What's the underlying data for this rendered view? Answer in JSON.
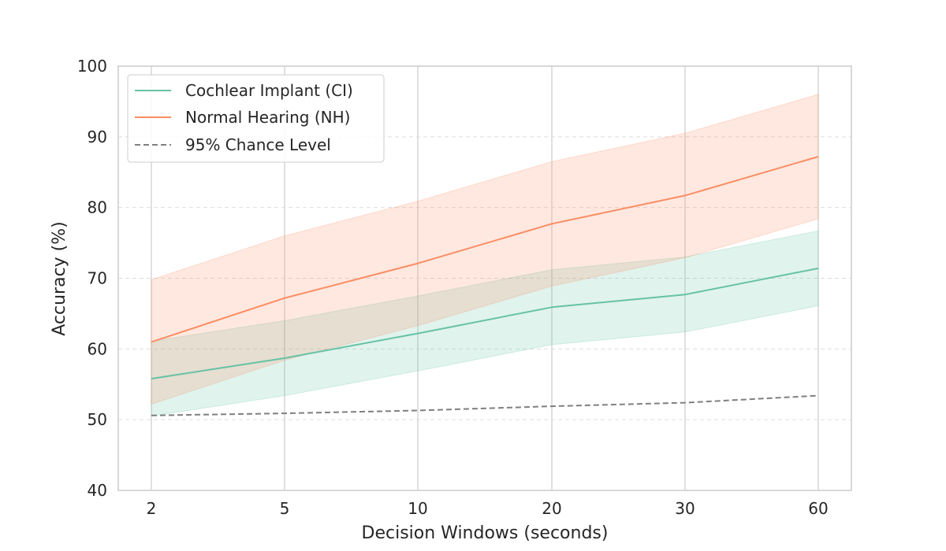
{
  "chart_data": {
    "type": "line",
    "title": "",
    "xlabel": "Decision Windows (seconds)",
    "ylabel": "Accuracy (%)",
    "categories": [
      "2",
      "5",
      "10",
      "20",
      "30",
      "60"
    ],
    "ylim": [
      40,
      100
    ],
    "yticks": [
      "40",
      "50",
      "60",
      "70",
      "80",
      "90",
      "100"
    ],
    "grid": {
      "x": "solid",
      "y": "dashed"
    },
    "legend_position": "top-left",
    "series": [
      {
        "name": "Cochlear Implant (CI)",
        "color": "#66c2a5",
        "style": "solid",
        "values": [
          55.8,
          58.7,
          62.2,
          65.9,
          67.7,
          71.4
        ],
        "lower": [
          50.5,
          53.4,
          56.9,
          60.6,
          62.4,
          66.1
        ],
        "upper": [
          61.1,
          64.0,
          67.5,
          71.2,
          73.0,
          76.7
        ]
      },
      {
        "name": "Normal Hearing (NH)",
        "color": "#fc8d62",
        "style": "solid",
        "values": [
          61.0,
          67.2,
          72.1,
          77.7,
          81.7,
          87.2
        ],
        "lower": [
          52.2,
          58.4,
          63.3,
          68.9,
          72.9,
          78.4
        ],
        "upper": [
          69.8,
          76.0,
          80.9,
          86.5,
          90.5,
          96.0
        ]
      },
      {
        "name": "95% Chance Level",
        "color": "#7f7f7f",
        "style": "dashed",
        "values": [
          50.6,
          50.9,
          51.3,
          51.9,
          52.4,
          53.4
        ]
      }
    ]
  }
}
